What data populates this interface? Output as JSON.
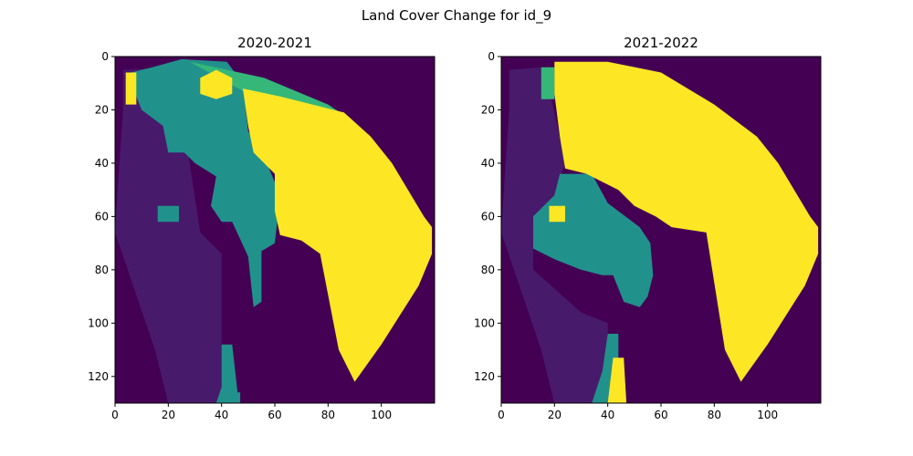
{
  "figure": {
    "title": "Land Cover Change for id_9"
  },
  "colors": {
    "background": "#440154",
    "class_low": "#481a6c",
    "class_mid": "#21918c",
    "class_light_green": "#35b779",
    "class_high": "#fde725"
  },
  "chart_data": [
    {
      "type": "heatmap",
      "title": "2020-2021",
      "xlabel": "",
      "ylabel": "",
      "xlim": [
        0,
        120
      ],
      "ylim": [
        130,
        0
      ],
      "xticks": [
        "0",
        "20",
        "40",
        "60",
        "80",
        "100"
      ],
      "yticks": [
        "0",
        "20",
        "40",
        "60",
        "80",
        "100",
        "120"
      ],
      "regions": [
        {
          "class": "class_low",
          "points": [
            [
              3,
              5
            ],
            [
              24,
              4
            ],
            [
              28,
              40
            ],
            [
              32,
              66
            ],
            [
              40,
              74
            ],
            [
              40,
              130
            ],
            [
              20,
              130
            ],
            [
              15,
              110
            ],
            [
              0,
              66
            ],
            [
              1,
              50
            ],
            [
              3,
              20
            ]
          ]
        },
        {
          "class": "class_mid",
          "points": [
            [
              6,
              6
            ],
            [
              14,
              4
            ],
            [
              25,
              1
            ],
            [
              42,
              2
            ],
            [
              48,
              10
            ],
            [
              50,
              28
            ],
            [
              57,
              40
            ],
            [
              62,
              52
            ],
            [
              60,
              70
            ],
            [
              55,
              73
            ],
            [
              55,
              92
            ],
            [
              52,
              94
            ],
            [
              50,
              75
            ],
            [
              44,
              62
            ],
            [
              40,
              62
            ],
            [
              36,
              56
            ],
            [
              38,
              45
            ],
            [
              30,
              40
            ],
            [
              26,
              36
            ],
            [
              20,
              36
            ],
            [
              18,
              26
            ],
            [
              10,
              20
            ],
            [
              6,
              10
            ]
          ]
        },
        {
          "class": "class_mid",
          "points": [
            [
              16,
              56
            ],
            [
              24,
              56
            ],
            [
              24,
              62
            ],
            [
              16,
              62
            ]
          ]
        },
        {
          "class": "class_mid",
          "points": [
            [
              40,
              108
            ],
            [
              44,
              108
            ],
            [
              46,
              126
            ],
            [
              47,
              126
            ],
            [
              47,
              130
            ],
            [
              38,
              130
            ],
            [
              40,
              124
            ]
          ]
        },
        {
          "class": "class_light_green",
          "points": [
            [
              28,
              2
            ],
            [
              56,
              8
            ],
            [
              80,
              18
            ],
            [
              86,
              22
            ],
            [
              70,
              20
            ],
            [
              50,
              14
            ]
          ]
        },
        {
          "class": "class_high",
          "points": [
            [
              48,
              12
            ],
            [
              62,
              15
            ],
            [
              86,
              21
            ],
            [
              96,
              30
            ],
            [
              104,
              40
            ],
            [
              116,
              60
            ],
            [
              119,
              64
            ],
            [
              119,
              74
            ],
            [
              114,
              86
            ],
            [
              100,
              108
            ],
            [
              90,
              122
            ],
            [
              84,
              110
            ],
            [
              77,
              74
            ],
            [
              70,
              69
            ],
            [
              62,
              67
            ],
            [
              60,
              58
            ],
            [
              60,
              44
            ],
            [
              52,
              36
            ],
            [
              50,
              26
            ]
          ]
        },
        {
          "class": "class_high",
          "points": [
            [
              32,
              8
            ],
            [
              38,
              5
            ],
            [
              44,
              8
            ],
            [
              44,
              14
            ],
            [
              38,
              16
            ],
            [
              32,
              14
            ]
          ]
        },
        {
          "class": "class_high",
          "points": [
            [
              4,
              6
            ],
            [
              8,
              6
            ],
            [
              8,
              18
            ],
            [
              4,
              18
            ]
          ]
        }
      ]
    },
    {
      "type": "heatmap",
      "title": "2021-2022",
      "xlabel": "",
      "ylabel": "",
      "xlim": [
        0,
        120
      ],
      "ylim": [
        130,
        0
      ],
      "xticks": [
        "0",
        "20",
        "40",
        "60",
        "80",
        "100"
      ],
      "yticks": [
        "0",
        "20",
        "40",
        "60",
        "80",
        "100",
        "120"
      ],
      "regions": [
        {
          "class": "class_low",
          "points": [
            [
              3,
              5
            ],
            [
              16,
              4
            ],
            [
              22,
              30
            ],
            [
              24,
              40
            ],
            [
              20,
              52
            ],
            [
              12,
              60
            ],
            [
              12,
              80
            ],
            [
              30,
              96
            ],
            [
              40,
              100
            ],
            [
              40,
              130
            ],
            [
              20,
              130
            ],
            [
              15,
              110
            ],
            [
              0,
              66
            ],
            [
              1,
              50
            ],
            [
              3,
              20
            ]
          ]
        },
        {
          "class": "class_mid",
          "points": [
            [
              22,
              44
            ],
            [
              34,
              44
            ],
            [
              40,
              55
            ],
            [
              52,
              64
            ],
            [
              56,
              70
            ],
            [
              57,
              82
            ],
            [
              55,
              90
            ],
            [
              52,
              94
            ],
            [
              46,
              92
            ],
            [
              42,
              82
            ],
            [
              38,
              82
            ],
            [
              30,
              80
            ],
            [
              20,
              76
            ],
            [
              12,
              72
            ],
            [
              12,
              60
            ],
            [
              20,
              52
            ]
          ]
        },
        {
          "class": "class_mid",
          "points": [
            [
              40,
              104
            ],
            [
              44,
              104
            ],
            [
              44,
              120
            ],
            [
              40,
              130
            ],
            [
              34,
              130
            ],
            [
              38,
              118
            ]
          ]
        },
        {
          "class": "class_light_green",
          "points": [
            [
              15,
              4
            ],
            [
              20,
              4
            ],
            [
              20,
              16
            ],
            [
              15,
              16
            ]
          ]
        },
        {
          "class": "class_high",
          "points": [
            [
              20,
              2
            ],
            [
              40,
              2
            ],
            [
              60,
              6
            ],
            [
              80,
              18
            ],
            [
              96,
              30
            ],
            [
              104,
              40
            ],
            [
              116,
              60
            ],
            [
              119,
              64
            ],
            [
              119,
              74
            ],
            [
              114,
              86
            ],
            [
              100,
              108
            ],
            [
              90,
              122
            ],
            [
              84,
              110
            ],
            [
              77,
              66
            ],
            [
              64,
              64
            ],
            [
              58,
              60
            ],
            [
              50,
              56
            ],
            [
              44,
              50
            ],
            [
              32,
              44
            ],
            [
              24,
              42
            ],
            [
              22,
              30
            ],
            [
              20,
              14
            ]
          ]
        },
        {
          "class": "class_high",
          "points": [
            [
              18,
              56
            ],
            [
              24,
              56
            ],
            [
              24,
              62
            ],
            [
              18,
              62
            ]
          ]
        },
        {
          "class": "class_high",
          "points": [
            [
              42,
              113
            ],
            [
              46,
              113
            ],
            [
              47,
              130
            ],
            [
              40,
              130
            ]
          ]
        }
      ]
    }
  ]
}
